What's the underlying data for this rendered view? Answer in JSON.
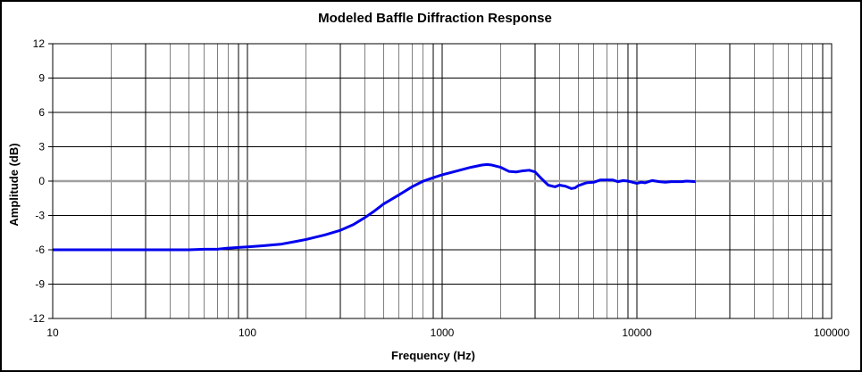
{
  "chart_data": {
    "type": "line",
    "title": "Modeled Baffle Diffraction Response",
    "xlabel": "Frequency (Hz)",
    "ylabel": "Amplitude (dB)",
    "x_scale": "log",
    "xlim": [
      10,
      100000
    ],
    "ylim": [
      -12,
      12
    ],
    "x_ticks": [
      10,
      100,
      1000,
      10000,
      100000
    ],
    "x_tick_labels": [
      "10",
      "100",
      "1000",
      "10000",
      "100000"
    ],
    "y_ticks": [
      12,
      9,
      6,
      3,
      0,
      -3,
      -6,
      -9,
      -12
    ],
    "y_tick_labels": [
      "12",
      "9",
      "6",
      "3",
      "0",
      "-3",
      "-6",
      "-9",
      "-12"
    ],
    "grid": true,
    "legend": "none",
    "colors": {
      "series": "#0000ee",
      "zero_line": "#a0a0a0",
      "grid": "#000000",
      "background": "#ffffff",
      "border": "#000000"
    },
    "series": [
      {
        "x": [
          10,
          20,
          30,
          40,
          50,
          60,
          70,
          80,
          90,
          100,
          120,
          150,
          180,
          200,
          250,
          300,
          350,
          400,
          450,
          500,
          600,
          700,
          800,
          900,
          1000,
          1200,
          1400,
          1600,
          1700,
          1800,
          2000,
          2200,
          2400,
          2600,
          2800,
          3000,
          3200,
          3500,
          3800,
          4000,
          4300,
          4600,
          4800,
          5000,
          5500,
          6000,
          6500,
          7000,
          7500,
          8000,
          8500,
          9000,
          9500,
          10000,
          10500,
          11000,
          12000,
          13000,
          14000,
          15000,
          16000,
          17000,
          18000,
          20000
        ],
        "y": [
          -6.0,
          -6.0,
          -6.0,
          -6.0,
          -6.0,
          -5.95,
          -5.95,
          -5.85,
          -5.8,
          -5.75,
          -5.65,
          -5.5,
          -5.25,
          -5.1,
          -4.7,
          -4.3,
          -3.8,
          -3.2,
          -2.6,
          -2.0,
          -1.2,
          -0.5,
          0.0,
          0.3,
          0.55,
          0.9,
          1.2,
          1.4,
          1.45,
          1.4,
          1.2,
          0.85,
          0.8,
          0.9,
          0.95,
          0.8,
          0.3,
          -0.35,
          -0.5,
          -0.35,
          -0.45,
          -0.65,
          -0.6,
          -0.4,
          -0.15,
          -0.1,
          0.1,
          0.1,
          0.1,
          -0.05,
          0.05,
          0.0,
          -0.1,
          -0.2,
          -0.1,
          -0.15,
          0.05,
          -0.05,
          -0.1,
          -0.05,
          -0.05,
          -0.05,
          0.0,
          -0.05
        ]
      }
    ]
  }
}
